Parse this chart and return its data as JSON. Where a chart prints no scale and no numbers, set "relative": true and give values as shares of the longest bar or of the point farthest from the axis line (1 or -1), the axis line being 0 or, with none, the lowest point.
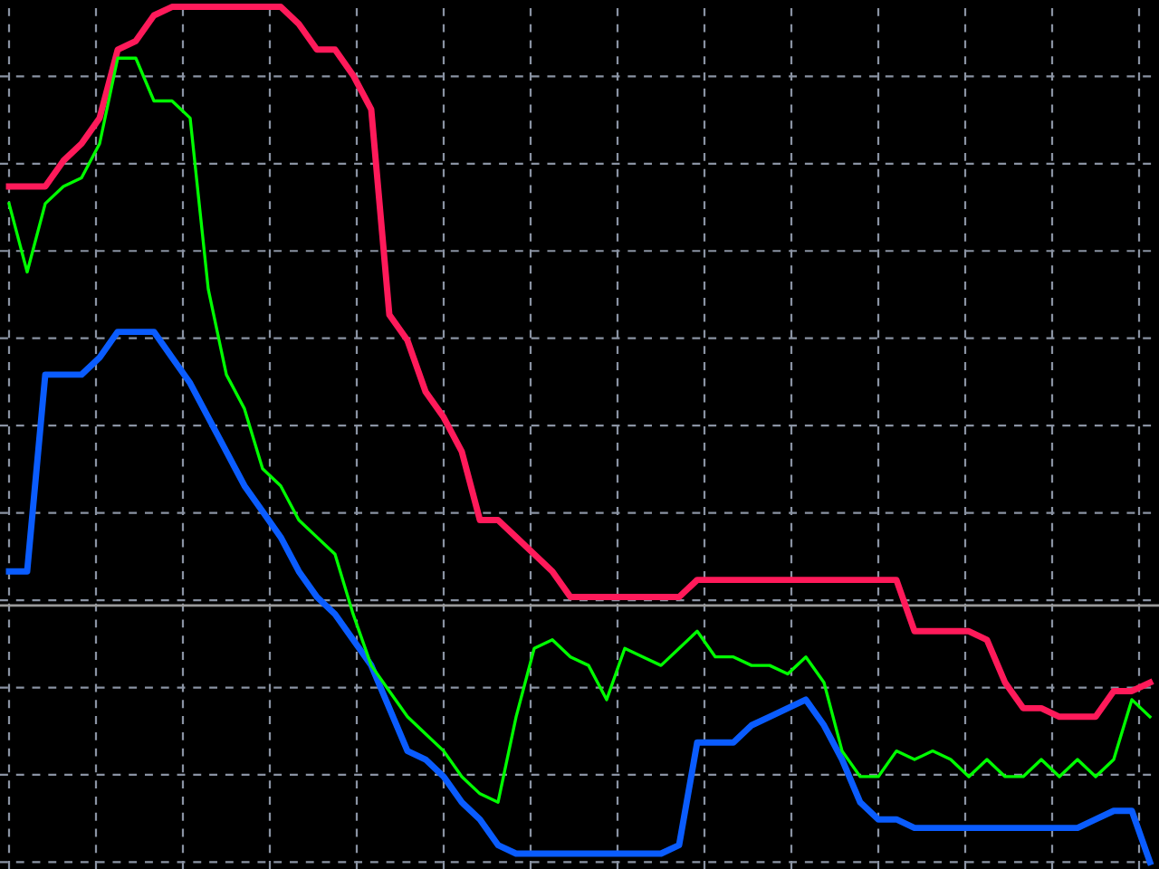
{
  "chart_data": {
    "type": "line",
    "relative": true,
    "grid": true,
    "tick_labels": false,
    "line_style": "solid",
    "categories": [
      null,
      null,
      null,
      null,
      null,
      null,
      null,
      null,
      null,
      null,
      null,
      null,
      null,
      null,
      null,
      null,
      null,
      null,
      null,
      null,
      null,
      null,
      null,
      null,
      null,
      null,
      null,
      null,
      null,
      null,
      null,
      null,
      null,
      null,
      null,
      null,
      null,
      null,
      null,
      null,
      null,
      null,
      null,
      null,
      null,
      null,
      null,
      null,
      null,
      null,
      null,
      null,
      null,
      null,
      null,
      null,
      null,
      null,
      null,
      null,
      null,
      null,
      null,
      null
    ],
    "series": [
      {
        "color": "#00ff00",
        "values": [
          0.77,
          0.69,
          0.77,
          0.79,
          0.8,
          0.84,
          0.94,
          0.94,
          0.89,
          0.89,
          0.87,
          0.67,
          0.57,
          0.53,
          0.46,
          0.44,
          0.4,
          0.38,
          0.36,
          0.29,
          0.23,
          0.2,
          0.17,
          0.15,
          0.13,
          0.1,
          0.08,
          0.07,
          0.17,
          0.25,
          0.26,
          0.24,
          0.23,
          0.19,
          0.25,
          0.24,
          0.23,
          0.25,
          0.27,
          0.24,
          0.24,
          0.23,
          0.23,
          0.22,
          0.24,
          0.21,
          0.13,
          0.1,
          0.1,
          0.13,
          0.12,
          0.13,
          0.12,
          0.1,
          0.12,
          0.1,
          0.1,
          0.12,
          0.1,
          0.12,
          0.1,
          0.12,
          0.19,
          0.17
        ]
      },
      {
        "color": "#ff1a5a",
        "values": [
          0.79,
          0.79,
          0.79,
          0.82,
          0.84,
          0.87,
          0.95,
          0.96,
          0.99,
          1.0,
          1.0,
          1.0,
          1.0,
          1.0,
          1.0,
          1.0,
          0.98,
          0.95,
          0.95,
          0.92,
          0.88,
          0.64,
          0.61,
          0.55,
          0.52,
          0.48,
          0.4,
          0.4,
          0.38,
          0.36,
          0.34,
          0.31,
          0.31,
          0.31,
          0.31,
          0.31,
          0.31,
          0.31,
          0.33,
          0.33,
          0.33,
          0.33,
          0.33,
          0.33,
          0.33,
          0.33,
          0.33,
          0.33,
          0.33,
          0.33,
          0.27,
          0.27,
          0.27,
          0.27,
          0.26,
          0.21,
          0.18,
          0.18,
          0.17,
          0.17,
          0.17,
          0.2,
          0.2,
          0.21
        ]
      },
      {
        "color": "#0a5cff",
        "values": [
          0.34,
          0.34,
          0.57,
          0.57,
          0.57,
          0.59,
          0.62,
          0.62,
          0.62,
          0.59,
          0.56,
          0.52,
          0.48,
          0.44,
          0.41,
          0.38,
          0.34,
          0.31,
          0.29,
          0.26,
          0.23,
          0.18,
          0.13,
          0.12,
          0.1,
          0.07,
          0.05,
          0.02,
          0.01,
          0.01,
          0.01,
          0.01,
          0.01,
          0.01,
          0.01,
          0.01,
          0.01,
          0.02,
          0.14,
          0.14,
          0.14,
          0.16,
          0.17,
          0.18,
          0.19,
          0.16,
          0.12,
          0.07,
          0.05,
          0.05,
          0.04,
          0.04,
          0.04,
          0.04,
          0.04,
          0.04,
          0.04,
          0.04,
          0.04,
          0.04,
          0.05,
          0.06,
          0.06,
          0
        ]
      }
    ],
    "ref_lines": [
      {
        "axis": "y",
        "value": 0.3,
        "color": "#9a9a9a"
      }
    ]
  }
}
